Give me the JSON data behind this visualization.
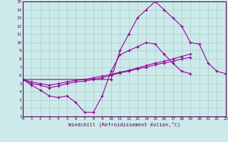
{
  "xlabel": "Windchill (Refroidissement éolien,°C)",
  "bg_color": "#cceaea",
  "grid_color": "#aacccc",
  "line_color": "#990099",
  "xmin": 0,
  "xmax": 23,
  "ymin": 1,
  "ymax": 15,
  "series": [
    {
      "x": [
        0,
        1,
        2,
        3,
        4,
        5,
        6,
        7,
        8,
        9,
        10,
        11,
        12,
        13,
        14,
        15,
        16,
        17,
        18,
        19,
        20,
        21,
        22,
        23
      ],
      "y": [
        5.5,
        4.8,
        4.2,
        3.5,
        3.3,
        3.5,
        2.7,
        1.5,
        1.5,
        3.5,
        6.5,
        8.5,
        9.0,
        9.5,
        10.0,
        9.8,
        8.6,
        7.5,
        6.5,
        6.2,
        null,
        null,
        null,
        null
      ]
    },
    {
      "x": [
        0,
        1,
        2,
        3,
        4,
        5,
        6,
        7,
        8,
        9,
        10,
        11,
        12,
        13,
        14,
        15,
        16,
        17,
        18,
        19,
        20,
        21,
        22,
        23
      ],
      "y": [
        5.5,
        5.0,
        4.8,
        4.5,
        4.7,
        5.0,
        5.2,
        5.3,
        5.5,
        5.7,
        6.0,
        6.3,
        6.5,
        6.8,
        7.0,
        7.3,
        7.5,
        7.7,
        8.0,
        8.2,
        null,
        null,
        null,
        null
      ]
    },
    {
      "x": [
        0,
        1,
        2,
        3,
        4,
        5,
        6,
        7,
        8,
        9,
        10,
        11,
        12,
        13,
        14,
        15,
        16,
        17,
        18,
        19,
        20,
        21,
        22,
        23
      ],
      "y": [
        5.5,
        5.2,
        5.0,
        4.8,
        5.0,
        5.2,
        5.4,
        5.5,
        5.7,
        5.9,
        6.1,
        6.4,
        6.6,
        6.9,
        7.2,
        7.5,
        7.7,
        8.0,
        8.3,
        8.6,
        null,
        null,
        null,
        null
      ]
    },
    {
      "x": [
        0,
        10,
        11,
        12,
        13,
        14,
        15,
        16,
        17,
        18,
        19,
        20,
        21,
        22,
        23
      ],
      "y": [
        5.5,
        5.5,
        9.0,
        11.0,
        13.0,
        14.0,
        15.0,
        14.0,
        13.0,
        12.0,
        10.0,
        9.8,
        7.5,
        6.5,
        6.2
      ]
    }
  ]
}
